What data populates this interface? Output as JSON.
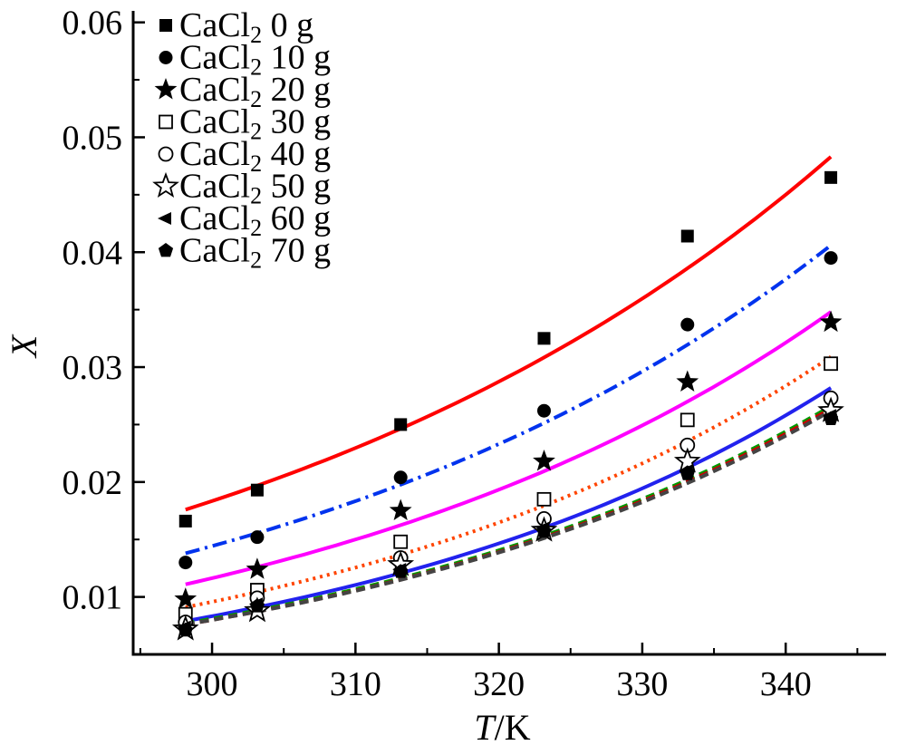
{
  "chart_data": {
    "type": "scatter",
    "xlabel_italic": "T",
    "xlabel_rest": "/K",
    "ylabel": "X",
    "xlim": [
      294.5,
      347
    ],
    "ylim": [
      0.005,
      0.061
    ],
    "xticks": [
      300,
      310,
      320,
      330,
      340
    ],
    "xtick_labels": [
      "300",
      "310",
      "320",
      "330",
      "340"
    ],
    "yticks": [
      0.01,
      0.02,
      0.03,
      0.04,
      0.05,
      0.06
    ],
    "ytick_labels": [
      "0.01",
      "0.02",
      "0.03",
      "0.04",
      "0.05",
      "0.06"
    ],
    "legend_position": "top-left",
    "series": [
      {
        "name_main": "CaCl",
        "name_sub": "2",
        "name_tail": " 0 g",
        "marker": "square-filled",
        "x": [
          298.15,
          303.15,
          313.15,
          323.15,
          333.15,
          343.15
        ],
        "y": [
          0.0166,
          0.0193,
          0.025,
          0.0325,
          0.0414,
          0.0465
        ]
      },
      {
        "name_main": "CaCl",
        "name_sub": "2",
        "name_tail": " 10 g",
        "marker": "circle-filled",
        "x": [
          298.15,
          303.15,
          313.15,
          323.15,
          333.15,
          343.15
        ],
        "y": [
          0.013,
          0.0152,
          0.0204,
          0.0262,
          0.0337,
          0.0395
        ]
      },
      {
        "name_main": "CaCl",
        "name_sub": "2",
        "name_tail": " 20 g",
        "marker": "star-filled",
        "x": [
          298.15,
          303.15,
          313.15,
          323.15,
          333.15,
          343.15
        ],
        "y": [
          0.0098,
          0.0124,
          0.0175,
          0.0218,
          0.0287,
          0.0339
        ]
      },
      {
        "name_main": "CaCl",
        "name_sub": "2",
        "name_tail": " 30 g",
        "marker": "square-open",
        "x": [
          298.15,
          303.15,
          313.15,
          323.15,
          333.15,
          343.15
        ],
        "y": [
          0.0085,
          0.0106,
          0.0148,
          0.0185,
          0.0254,
          0.0303
        ]
      },
      {
        "name_main": "CaCl",
        "name_sub": "2",
        "name_tail": " 40 g",
        "marker": "circle-open",
        "x": [
          298.15,
          303.15,
          313.15,
          323.15,
          333.15,
          343.15
        ],
        "y": [
          0.0078,
          0.0099,
          0.0134,
          0.0168,
          0.0232,
          0.0273
        ]
      },
      {
        "name_main": "CaCl",
        "name_sub": "2",
        "name_tail": " 50 g",
        "marker": "star-open",
        "x": [
          298.15,
          303.15,
          313.15,
          323.15,
          333.15,
          343.15
        ],
        "y": [
          0.0072,
          0.0088,
          0.0128,
          0.0158,
          0.0218,
          0.0262
        ]
      },
      {
        "name_main": "CaCl",
        "name_sub": "2",
        "name_tail": " 60 g",
        "marker": "triangle-left",
        "x": [
          298.15,
          303.15,
          313.15,
          323.15,
          333.15,
          343.15
        ],
        "y": [
          0.0074,
          0.0094,
          0.0124,
          0.016,
          0.021,
          0.0258
        ]
      },
      {
        "name_main": "CaCl",
        "name_sub": "2",
        "name_tail": " 70 g",
        "marker": "pentagon-filled",
        "x": [
          298.15,
          303.15,
          313.15,
          323.15,
          333.15,
          343.15
        ],
        "y": [
          0.0071,
          0.0092,
          0.0122,
          0.0157,
          0.0207,
          0.0255
        ]
      }
    ],
    "fit_lines": [
      {
        "color": "#ff0000",
        "dash": "solid",
        "x": [
          298.15,
          343.15
        ],
        "y": [
          0.0176,
          0.0483
        ]
      },
      {
        "color": "#0033ee",
        "dash": "dashdot",
        "x": [
          298.15,
          343.15
        ],
        "y": [
          0.0138,
          0.0406
        ]
      },
      {
        "color": "#ff00ff",
        "dash": "solid",
        "x": [
          298.15,
          343.15
        ],
        "y": [
          0.0111,
          0.0348
        ]
      },
      {
        "color": "#ff4400",
        "dash": "dot",
        "x": [
          298.15,
          343.15
        ],
        "y": [
          0.0091,
          0.0309
        ]
      },
      {
        "color": "#2222ee",
        "dash": "solid",
        "x": [
          298.15,
          343.15
        ],
        "y": [
          0.0079,
          0.0282
        ]
      },
      {
        "color": "#009900",
        "dash": "dash",
        "x": [
          298.15,
          343.15
        ],
        "y": [
          0.0077,
          0.0266
        ]
      },
      {
        "color": "#cc0000",
        "dash": "dash",
        "x": [
          298.15,
          343.15
        ],
        "y": [
          0.0076,
          0.0264
        ]
      },
      {
        "color": "#444444",
        "dash": "dash",
        "x": [
          298.15,
          343.15
        ],
        "y": [
          0.0076,
          0.0262
        ]
      }
    ]
  }
}
